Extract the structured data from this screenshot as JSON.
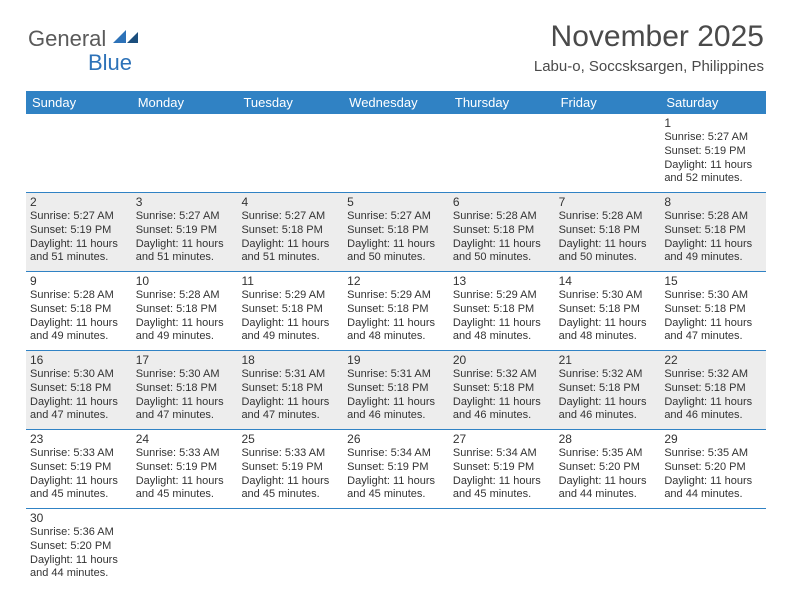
{
  "logo": {
    "general": "General",
    "blue": "Blue"
  },
  "title": "November 2025",
  "subtitle": "Labu-o, Soccsksargen, Philippines",
  "colors": {
    "header_bg": "#3082c4",
    "header_fg": "#ffffff",
    "shaded_bg": "#ededed",
    "border": "#3082c4",
    "title_color": "#4a4a4a",
    "logo_gray": "#5a5a5a",
    "logo_blue": "#2d72b8",
    "text": "#333333",
    "background": "#ffffff"
  },
  "typography": {
    "title_fontsize": 30,
    "subtitle_fontsize": 15,
    "dayheader_fontsize": 13,
    "daynum_fontsize": 12,
    "info_fontsize": 11,
    "logo_fontsize": 22
  },
  "day_names": [
    "Sunday",
    "Monday",
    "Tuesday",
    "Wednesday",
    "Thursday",
    "Friday",
    "Saturday"
  ],
  "weeks": [
    [
      {
        "day": "",
        "sunrise": "",
        "sunset": "",
        "daylight": "",
        "shaded": false,
        "empty": true
      },
      {
        "day": "",
        "sunrise": "",
        "sunset": "",
        "daylight": "",
        "shaded": false,
        "empty": true
      },
      {
        "day": "",
        "sunrise": "",
        "sunset": "",
        "daylight": "",
        "shaded": false,
        "empty": true
      },
      {
        "day": "",
        "sunrise": "",
        "sunset": "",
        "daylight": "",
        "shaded": false,
        "empty": true
      },
      {
        "day": "",
        "sunrise": "",
        "sunset": "",
        "daylight": "",
        "shaded": false,
        "empty": true
      },
      {
        "day": "",
        "sunrise": "",
        "sunset": "",
        "daylight": "",
        "shaded": false,
        "empty": true
      },
      {
        "day": "1",
        "sunrise": "Sunrise: 5:27 AM",
        "sunset": "Sunset: 5:19 PM",
        "daylight": "Daylight: 11 hours and 52 minutes.",
        "shaded": false
      }
    ],
    [
      {
        "day": "2",
        "sunrise": "Sunrise: 5:27 AM",
        "sunset": "Sunset: 5:19 PM",
        "daylight": "Daylight: 11 hours and 51 minutes.",
        "shaded": true
      },
      {
        "day": "3",
        "sunrise": "Sunrise: 5:27 AM",
        "sunset": "Sunset: 5:19 PM",
        "daylight": "Daylight: 11 hours and 51 minutes.",
        "shaded": true
      },
      {
        "day": "4",
        "sunrise": "Sunrise: 5:27 AM",
        "sunset": "Sunset: 5:18 PM",
        "daylight": "Daylight: 11 hours and 51 minutes.",
        "shaded": true
      },
      {
        "day": "5",
        "sunrise": "Sunrise: 5:27 AM",
        "sunset": "Sunset: 5:18 PM",
        "daylight": "Daylight: 11 hours and 50 minutes.",
        "shaded": true
      },
      {
        "day": "6",
        "sunrise": "Sunrise: 5:28 AM",
        "sunset": "Sunset: 5:18 PM",
        "daylight": "Daylight: 11 hours and 50 minutes.",
        "shaded": true
      },
      {
        "day": "7",
        "sunrise": "Sunrise: 5:28 AM",
        "sunset": "Sunset: 5:18 PM",
        "daylight": "Daylight: 11 hours and 50 minutes.",
        "shaded": true
      },
      {
        "day": "8",
        "sunrise": "Sunrise: 5:28 AM",
        "sunset": "Sunset: 5:18 PM",
        "daylight": "Daylight: 11 hours and 49 minutes.",
        "shaded": true
      }
    ],
    [
      {
        "day": "9",
        "sunrise": "Sunrise: 5:28 AM",
        "sunset": "Sunset: 5:18 PM",
        "daylight": "Daylight: 11 hours and 49 minutes.",
        "shaded": false
      },
      {
        "day": "10",
        "sunrise": "Sunrise: 5:28 AM",
        "sunset": "Sunset: 5:18 PM",
        "daylight": "Daylight: 11 hours and 49 minutes.",
        "shaded": false
      },
      {
        "day": "11",
        "sunrise": "Sunrise: 5:29 AM",
        "sunset": "Sunset: 5:18 PM",
        "daylight": "Daylight: 11 hours and 49 minutes.",
        "shaded": false
      },
      {
        "day": "12",
        "sunrise": "Sunrise: 5:29 AM",
        "sunset": "Sunset: 5:18 PM",
        "daylight": "Daylight: 11 hours and 48 minutes.",
        "shaded": false
      },
      {
        "day": "13",
        "sunrise": "Sunrise: 5:29 AM",
        "sunset": "Sunset: 5:18 PM",
        "daylight": "Daylight: 11 hours and 48 minutes.",
        "shaded": false
      },
      {
        "day": "14",
        "sunrise": "Sunrise: 5:30 AM",
        "sunset": "Sunset: 5:18 PM",
        "daylight": "Daylight: 11 hours and 48 minutes.",
        "shaded": false
      },
      {
        "day": "15",
        "sunrise": "Sunrise: 5:30 AM",
        "sunset": "Sunset: 5:18 PM",
        "daylight": "Daylight: 11 hours and 47 minutes.",
        "shaded": false
      }
    ],
    [
      {
        "day": "16",
        "sunrise": "Sunrise: 5:30 AM",
        "sunset": "Sunset: 5:18 PM",
        "daylight": "Daylight: 11 hours and 47 minutes.",
        "shaded": true
      },
      {
        "day": "17",
        "sunrise": "Sunrise: 5:30 AM",
        "sunset": "Sunset: 5:18 PM",
        "daylight": "Daylight: 11 hours and 47 minutes.",
        "shaded": true
      },
      {
        "day": "18",
        "sunrise": "Sunrise: 5:31 AM",
        "sunset": "Sunset: 5:18 PM",
        "daylight": "Daylight: 11 hours and 47 minutes.",
        "shaded": true
      },
      {
        "day": "19",
        "sunrise": "Sunrise: 5:31 AM",
        "sunset": "Sunset: 5:18 PM",
        "daylight": "Daylight: 11 hours and 46 minutes.",
        "shaded": true
      },
      {
        "day": "20",
        "sunrise": "Sunrise: 5:32 AM",
        "sunset": "Sunset: 5:18 PM",
        "daylight": "Daylight: 11 hours and 46 minutes.",
        "shaded": true
      },
      {
        "day": "21",
        "sunrise": "Sunrise: 5:32 AM",
        "sunset": "Sunset: 5:18 PM",
        "daylight": "Daylight: 11 hours and 46 minutes.",
        "shaded": true
      },
      {
        "day": "22",
        "sunrise": "Sunrise: 5:32 AM",
        "sunset": "Sunset: 5:18 PM",
        "daylight": "Daylight: 11 hours and 46 minutes.",
        "shaded": true
      }
    ],
    [
      {
        "day": "23",
        "sunrise": "Sunrise: 5:33 AM",
        "sunset": "Sunset: 5:19 PM",
        "daylight": "Daylight: 11 hours and 45 minutes.",
        "shaded": false
      },
      {
        "day": "24",
        "sunrise": "Sunrise: 5:33 AM",
        "sunset": "Sunset: 5:19 PM",
        "daylight": "Daylight: 11 hours and 45 minutes.",
        "shaded": false
      },
      {
        "day": "25",
        "sunrise": "Sunrise: 5:33 AM",
        "sunset": "Sunset: 5:19 PM",
        "daylight": "Daylight: 11 hours and 45 minutes.",
        "shaded": false
      },
      {
        "day": "26",
        "sunrise": "Sunrise: 5:34 AM",
        "sunset": "Sunset: 5:19 PM",
        "daylight": "Daylight: 11 hours and 45 minutes.",
        "shaded": false
      },
      {
        "day": "27",
        "sunrise": "Sunrise: 5:34 AM",
        "sunset": "Sunset: 5:19 PM",
        "daylight": "Daylight: 11 hours and 45 minutes.",
        "shaded": false
      },
      {
        "day": "28",
        "sunrise": "Sunrise: 5:35 AM",
        "sunset": "Sunset: 5:20 PM",
        "daylight": "Daylight: 11 hours and 44 minutes.",
        "shaded": false
      },
      {
        "day": "29",
        "sunrise": "Sunrise: 5:35 AM",
        "sunset": "Sunset: 5:20 PM",
        "daylight": "Daylight: 11 hours and 44 minutes.",
        "shaded": false
      }
    ],
    [
      {
        "day": "30",
        "sunrise": "Sunrise: 5:36 AM",
        "sunset": "Sunset: 5:20 PM",
        "daylight": "Daylight: 11 hours and 44 minutes.",
        "shaded": false
      },
      {
        "day": "",
        "sunrise": "",
        "sunset": "",
        "daylight": "",
        "shaded": false,
        "empty": true
      },
      {
        "day": "",
        "sunrise": "",
        "sunset": "",
        "daylight": "",
        "shaded": false,
        "empty": true
      },
      {
        "day": "",
        "sunrise": "",
        "sunset": "",
        "daylight": "",
        "shaded": false,
        "empty": true
      },
      {
        "day": "",
        "sunrise": "",
        "sunset": "",
        "daylight": "",
        "shaded": false,
        "empty": true
      },
      {
        "day": "",
        "sunrise": "",
        "sunset": "",
        "daylight": "",
        "shaded": false,
        "empty": true
      },
      {
        "day": "",
        "sunrise": "",
        "sunset": "",
        "daylight": "",
        "shaded": false,
        "empty": true
      }
    ]
  ]
}
